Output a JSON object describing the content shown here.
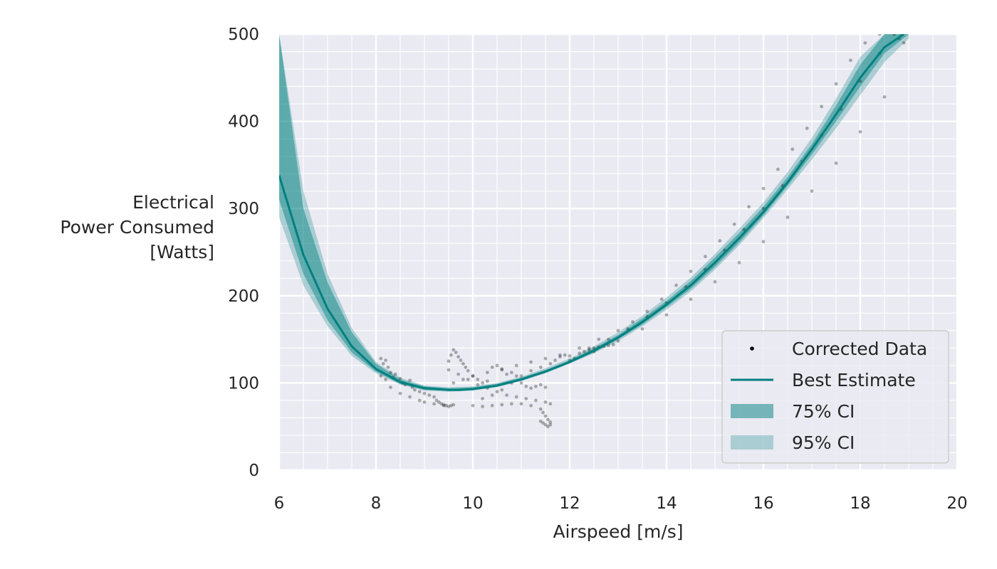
{
  "chart_data": {
    "type": "scatter",
    "title": "",
    "xlabel": "Airspeed [m/s]",
    "ylabel_lines": [
      "Electrical",
      "Power Consumed",
      "[Watts]"
    ],
    "xlim": [
      6,
      20
    ],
    "ylim": [
      0,
      500
    ],
    "x_ticks": [
      6,
      8,
      10,
      12,
      14,
      16,
      18,
      20
    ],
    "y_ticks": [
      0,
      100,
      200,
      300,
      400,
      500
    ],
    "grid": true,
    "minor_grid": true,
    "legend_position": "lower-right",
    "legend": [
      {
        "label": "Corrected Data",
        "kind": "marker"
      },
      {
        "label": "Best Estimate",
        "kind": "line"
      },
      {
        "label": "75% CI",
        "kind": "band75"
      },
      {
        "label": "95% CI",
        "kind": "band95"
      }
    ],
    "colors": {
      "background": "#eaeaf2",
      "grid": "#ffffff",
      "estimate": "#008080",
      "ci75": "#008080",
      "ci95": "#008080",
      "points": "#000000"
    },
    "best_estimate": {
      "x": [
        6.0,
        6.5,
        7.0,
        7.5,
        8.0,
        8.5,
        9.0,
        9.5,
        9.7,
        10.0,
        10.5,
        11.0,
        11.5,
        12.0,
        12.5,
        13.0,
        13.5,
        14.0,
        14.5,
        15.0,
        15.5,
        16.0,
        16.5,
        17.0,
        17.5,
        18.0,
        18.5,
        18.9
      ],
      "y": [
        338,
        247,
        185,
        142,
        116,
        101,
        94,
        92,
        92,
        93,
        97,
        104,
        113,
        124,
        137,
        152,
        170,
        190,
        212,
        238,
        266,
        296,
        330,
        368,
        408,
        450,
        485,
        500
      ]
    },
    "ci75": {
      "x": [
        6.0,
        6.5,
        7.0,
        7.5,
        8.0,
        8.5,
        9.0,
        9.5,
        10.0,
        10.5,
        11.0,
        11.5,
        12.0,
        12.5,
        13.0,
        13.5,
        14.0,
        14.5,
        15.0,
        15.5,
        16.0,
        16.5,
        17.0,
        17.5,
        18.0,
        18.5,
        19.0
      ],
      "lower": [
        310,
        225,
        172,
        135,
        113,
        99,
        92,
        91,
        92,
        96,
        103,
        112,
        123,
        135,
        150,
        167,
        187,
        208,
        233,
        261,
        292,
        326,
        362,
        400,
        440,
        478,
        500
      ],
      "upper": [
        500,
        300,
        215,
        158,
        122,
        104,
        96,
        94,
        95,
        99,
        106,
        115,
        126,
        140,
        155,
        174,
        194,
        217,
        244,
        272,
        302,
        336,
        374,
        418,
        465,
        500,
        500
      ]
    },
    "ci95": {
      "x": [
        6.0,
        6.5,
        7.0,
        7.5,
        8.0,
        8.5,
        9.0,
        9.5,
        10.0,
        10.5,
        11.0,
        11.5,
        12.0,
        12.5,
        13.0,
        13.5,
        14.0,
        14.5,
        15.0,
        15.5,
        16.0,
        16.5,
        17.0,
        17.5,
        18.0,
        18.5,
        19.0
      ],
      "lower": [
        290,
        212,
        165,
        131,
        111,
        98,
        91,
        90,
        91,
        95,
        102,
        111,
        122,
        134,
        148,
        165,
        184,
        205,
        230,
        258,
        289,
        322,
        356,
        392,
        430,
        468,
        495
      ],
      "upper": [
        500,
        320,
        225,
        163,
        124,
        106,
        97,
        95,
        96,
        100,
        107,
        117,
        128,
        142,
        158,
        177,
        198,
        221,
        248,
        277,
        307,
        342,
        381,
        426,
        474,
        500,
        500
      ]
    },
    "scatter": {
      "x": [
        8.1,
        8.15,
        8.2,
        8.25,
        8.3,
        8.1,
        8.2,
        8.35,
        8.4,
        8.5,
        8.55,
        8.6,
        8.7,
        8.75,
        8.8,
        8.9,
        9.0,
        9.1,
        9.2,
        9.25,
        9.3,
        9.35,
        9.4,
        9.45,
        9.5,
        9.55,
        9.6,
        8.3,
        8.5,
        8.7,
        8.9,
        9.0,
        9.2,
        9.4,
        9.5,
        9.55,
        9.6,
        9.65,
        9.7,
        9.75,
        9.8,
        9.85,
        9.9,
        10.0,
        10.1,
        10.2,
        10.3,
        10.4,
        10.5,
        10.6,
        10.7,
        10.8,
        10.9,
        11.0,
        11.1,
        11.2,
        11.3,
        11.4,
        11.5,
        9.5,
        9.7,
        9.9,
        10.1,
        10.3,
        10.5,
        10.7,
        10.9,
        11.1,
        11.3,
        11.5,
        11.6,
        10.0,
        10.2,
        10.4,
        10.6,
        10.8,
        11.0,
        11.2,
        11.4,
        11.45,
        11.5,
        11.55,
        11.6,
        11.6,
        11.55,
        11.5,
        11.45,
        11.4,
        10.2,
        10.4,
        10.6,
        10.8,
        11.0,
        11.2,
        11.4,
        11.6,
        11.7,
        11.8,
        11.9,
        12.0,
        12.1,
        12.2,
        12.3,
        12.4,
        12.5,
        12.6,
        12.7,
        12.8,
        12.9,
        9.6,
        9.8,
        10.0,
        10.3,
        10.6,
        10.9,
        11.2,
        11.5,
        11.8,
        12.2,
        12.6,
        13.0,
        13.3,
        13.6,
        13.9,
        14.2,
        14.5,
        14.8,
        15.1,
        15.4,
        15.7,
        16.0,
        16.3,
        16.6,
        16.9,
        17.2,
        17.5,
        17.8,
        18.1,
        18.4,
        18.7,
        18.85,
        12.4,
        12.8,
        13.2,
        13.6,
        14.0,
        14.4,
        14.8,
        15.2,
        15.6,
        16.0,
        16.4,
        16.8,
        17.2,
        17.6,
        18.0,
        18.4,
        18.8,
        12.0,
        12.5,
        13.0,
        13.5,
        14.0,
        14.5,
        15.0,
        15.5,
        16.0,
        16.5,
        17.0,
        17.5,
        18.0,
        18.5,
        18.9
      ],
      "y": [
        128,
        122,
        126,
        118,
        112,
        108,
        104,
        106,
        110,
        105,
        100,
        98,
        103,
        95,
        92,
        90,
        88,
        86,
        84,
        80,
        78,
        76,
        75,
        74,
        73,
        74,
        75,
        95,
        88,
        84,
        80,
        78,
        76,
        74,
        125,
        132,
        138,
        135,
        130,
        126,
        122,
        118,
        114,
        108,
        104,
        100,
        102,
        118,
        120,
        115,
        110,
        112,
        108,
        100,
        96,
        94,
        96,
        98,
        95,
        115,
        110,
        104,
        98,
        94,
        90,
        86,
        84,
        82,
        80,
        78,
        76,
        74,
        73,
        74,
        75,
        76,
        76,
        74,
        70,
        66,
        62,
        58,
        55,
        52,
        50,
        52,
        54,
        56,
        82,
        86,
        92,
        100,
        108,
        114,
        118,
        122,
        126,
        130,
        132,
        131,
        128,
        134,
        136,
        138,
        140,
        141,
        142,
        143,
        144,
        100,
        104,
        108,
        112,
        116,
        120,
        124,
        128,
        132,
        140,
        150,
        160,
        170,
        182,
        196,
        212,
        228,
        245,
        263,
        282,
        302,
        323,
        345,
        368,
        392,
        417,
        443,
        470,
        490,
        500,
        500,
        500,
        140,
        150,
        162,
        176,
        192,
        210,
        230,
        252,
        276,
        300,
        326,
        354,
        384,
        414,
        446,
        478,
        495,
        126,
        136,
        148,
        162,
        178,
        196,
        216,
        238,
        262,
        290,
        320,
        352,
        388,
        428,
        490
      ]
    }
  }
}
